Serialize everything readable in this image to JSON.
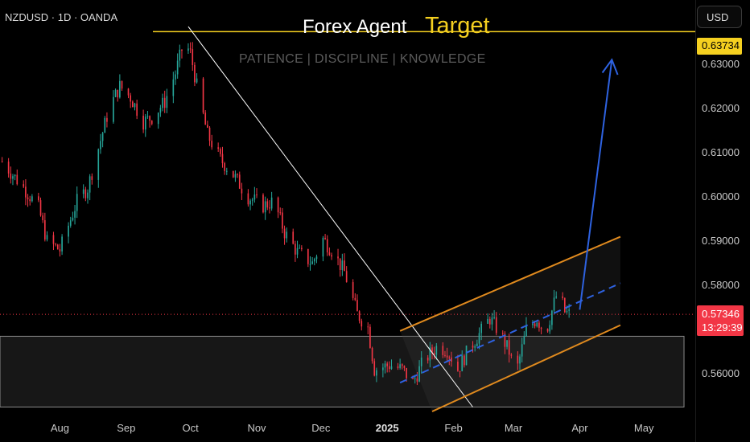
{
  "header": {
    "symbol": "NZDUSD · 1D · OANDA",
    "title": "Forex Agent",
    "target_label": "Target",
    "tagline": "PATIENCE  |  DISCIPLINE  |  KNOWLEDGE",
    "currency": "USD"
  },
  "price_tags": {
    "target": "0.63734",
    "current": "0.57346",
    "countdown": "13:29:39"
  },
  "colors": {
    "background": "#000000",
    "up": "#26a69a",
    "down": "#f23645",
    "target_line": "#f5d020",
    "channel": "#e08a1e",
    "projection": "#2e62e0",
    "trendline": "#ffffff"
  },
  "chart_data": {
    "type": "candlestick",
    "symbol": "NZDUSD",
    "timeframe": "1D",
    "x_ticks": [
      {
        "label": "Aug",
        "date": "2024-08-01"
      },
      {
        "label": "Sep",
        "date": "2024-09-01"
      },
      {
        "label": "Oct",
        "date": "2024-10-01"
      },
      {
        "label": "Nov",
        "date": "2024-11-01"
      },
      {
        "label": "Dec",
        "date": "2024-12-01"
      },
      {
        "label": "2025",
        "date": "2025-01-01",
        "bold": true
      },
      {
        "label": "Feb",
        "date": "2025-02-01"
      },
      {
        "label": "Mar",
        "date": "2025-03-01"
      },
      {
        "label": "Apr",
        "date": "2025-04-01"
      },
      {
        "label": "May",
        "date": "2025-05-01"
      }
    ],
    "y_ticks": [
      "0.63000",
      "0.62000",
      "0.61000",
      "0.60000",
      "0.59000",
      "0.58000",
      "0.56000"
    ],
    "ylim": [
      0.5515,
      0.6445
    ],
    "xlim": [
      "2024-07-04",
      "2025-05-25"
    ],
    "close_path": [
      [
        "2024-07-05",
        0.608
      ],
      [
        "2024-07-10",
        0.605
      ],
      [
        "2024-07-16",
        0.6015
      ],
      [
        "2024-07-22",
        0.5975
      ],
      [
        "2024-07-26",
        0.59
      ],
      [
        "2024-08-01",
        0.588
      ],
      [
        "2024-08-05",
        0.5935
      ],
      [
        "2024-08-09",
        0.599
      ],
      [
        "2024-08-14",
        0.602
      ],
      [
        "2024-08-19",
        0.611
      ],
      [
        "2024-08-24",
        0.62
      ],
      [
        "2024-08-29",
        0.625
      ],
      [
        "2024-09-03",
        0.6225
      ],
      [
        "2024-09-09",
        0.617
      ],
      [
        "2024-09-13",
        0.618
      ],
      [
        "2024-09-19",
        0.6215
      ],
      [
        "2024-09-24",
        0.628
      ],
      [
        "2024-09-28",
        0.635
      ],
      [
        "2024-10-01",
        0.6325
      ],
      [
        "2024-10-04",
        0.625
      ],
      [
        "2024-10-09",
        0.614
      ],
      [
        "2024-10-15",
        0.6085
      ],
      [
        "2024-10-21",
        0.605
      ],
      [
        "2024-10-28",
        0.6
      ],
      [
        "2024-11-04",
        0.598
      ],
      [
        "2024-11-09",
        0.599
      ],
      [
        "2024-11-14",
        0.592
      ],
      [
        "2024-11-20",
        0.5875
      ],
      [
        "2024-11-27",
        0.585
      ],
      [
        "2024-12-02",
        0.5905
      ],
      [
        "2024-12-06",
        0.588
      ],
      [
        "2024-12-12",
        0.583
      ],
      [
        "2024-12-18",
        0.5735
      ],
      [
        "2024-12-23",
        0.5705
      ],
      [
        "2024-12-26",
        0.561
      ],
      [
        "2025-01-02",
        0.562
      ],
      [
        "2025-01-08",
        0.561
      ],
      [
        "2025-01-13",
        0.558
      ],
      [
        "2025-01-18",
        0.563
      ],
      [
        "2025-01-24",
        0.566
      ],
      [
        "2025-01-29",
        0.5655
      ],
      [
        "2025-02-03",
        0.561
      ],
      [
        "2025-02-08",
        0.5655
      ],
      [
        "2025-02-13",
        0.569
      ],
      [
        "2025-02-18",
        0.5725
      ],
      [
        "2025-02-23",
        0.569
      ],
      [
        "2025-02-27",
        0.565
      ],
      [
        "2025-03-02",
        0.5595
      ],
      [
        "2025-03-07",
        0.57
      ],
      [
        "2025-03-12",
        0.5725
      ],
      [
        "2025-03-16",
        0.569
      ],
      [
        "2025-03-20",
        0.576
      ],
      [
        "2025-03-22",
        0.579
      ],
      [
        "2025-03-25",
        0.574
      ],
      [
        "2025-03-27",
        0.5735
      ]
    ],
    "target_level": 0.63734,
    "current_price": 0.57346,
    "support_zone": [
      0.5525,
      0.5685
    ],
    "trendline": [
      [
        "2024-09-30",
        0.6385
      ],
      [
        "2025-02-10",
        0.5525
      ]
    ],
    "channel_upper": [
      [
        "2025-01-07",
        0.5697
      ],
      [
        "2025-04-20",
        0.591
      ]
    ],
    "channel_lower": [
      [
        "2025-01-22",
        0.5515
      ],
      [
        "2025-04-20",
        0.571
      ]
    ],
    "channel_mid": [
      [
        "2025-01-07",
        0.558
      ],
      [
        "2025-04-20",
        0.5805
      ]
    ],
    "projection_arrow": [
      [
        "2025-04-01",
        0.5745
      ],
      [
        "2025-04-16",
        0.631
      ]
    ]
  }
}
